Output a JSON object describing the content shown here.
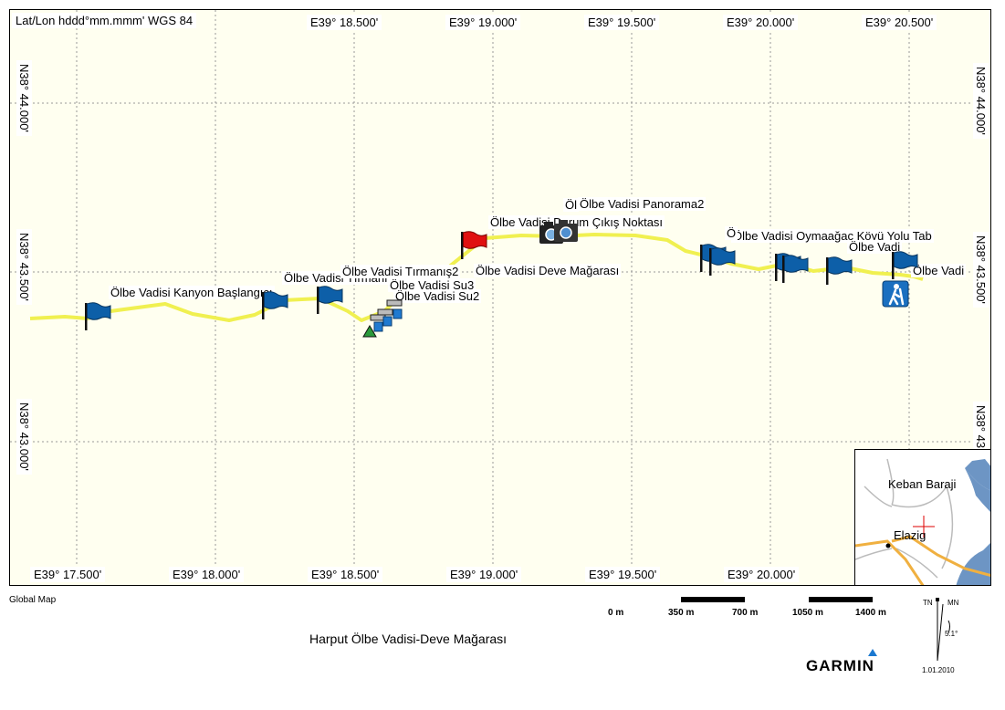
{
  "map": {
    "coordinate_system": "Lat/Lon hddd°mm.mmm' WGS 84",
    "top_lon_labels": [
      "E39° 18.500'",
      "E39° 19.000'",
      "E39° 19.500'",
      "E39° 20.000'",
      "E39° 20.500'"
    ],
    "bottom_lon_labels": [
      "E39° 17.500'",
      "E39° 18.000'",
      "E39° 18.500'",
      "E39° 19.000'",
      "E39° 19.500'",
      "E39° 20.000'"
    ],
    "left_lat_labels": [
      "N38° 44.000'",
      "N38° 43.500'",
      "N38° 43.000'"
    ],
    "right_lat_labels": [
      "N38° 44.000'",
      "N38° 43.500'",
      "N38° 43"
    ],
    "waypoints": [
      "Ölbe Vadisi Kanyon Başlangıcı",
      "Ölbe Vadisi Tırmanış1",
      "Ölbe Vadisi Tırmanış2",
      "Ölbe Vadisi Su3",
      "Ölbe Vadisi Su2",
      "Ölbe Vadisi Deve Mağarası",
      "Ölbe Vadisi Panorama2",
      "Öl",
      "Ölbe Vadisi Durum Çıkış Noktası",
      "Ölbe Vadisi Oymaağaç Köyü Yolu Tab",
      "Ö",
      "Ölbe Vadi",
      "Ölbe Vadi"
    ],
    "track_color": "#f0f050",
    "flag_color": "#0d5fa8",
    "red_flag_color": "#e01010"
  },
  "inset": {
    "labels": [
      "Keban Baraji",
      "Elazig"
    ],
    "water_color": "#6d95c4",
    "road_color": "#f0b040"
  },
  "footer": {
    "source": "Global Map",
    "title": "Harput Ölbe Vadisi-Deve Mağarası",
    "brand": "GARMIN",
    "scale_labels": [
      "0 m",
      "350 m",
      "700 m",
      "1050 m",
      "1400 m"
    ],
    "north_tn": "TN",
    "north_mn": "MN",
    "declination": "5.1°",
    "date": "1.01.2010"
  }
}
